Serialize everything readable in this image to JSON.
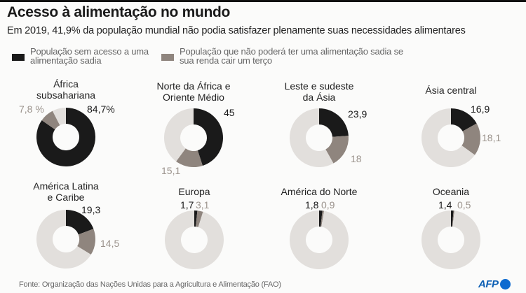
{
  "title": "Acesso à alimentação no mundo",
  "subtitle": "Em 2019, 41,9% da população mundial não podia satisfazer plenamente suas necessidades alimentares",
  "legend": [
    {
      "label": "População sem acesso a uma\nalimentação sadia",
      "color": "#1a1a1a"
    },
    {
      "label": "População que não poderá ter uma alimentação sadia se\nsua renda cair um terço",
      "color": "#8f857e"
    }
  ],
  "colors": {
    "no_access": "#1a1a1a",
    "at_risk": "#8f857e",
    "rest": "#e2dfdc"
  },
  "chart_data": {
    "type": "pie",
    "title": "Acesso à alimentação no mundo",
    "subtitle": "Em 2019, 41,9% da população mundial não podia satisfazer plenamente suas necessidades alimentares",
    "unit": "%",
    "series_names": [
      "População sem acesso a uma alimentação sadia",
      "População que não poderá ter uma alimentação sadia se sua renda cair um terço"
    ],
    "regions": [
      {
        "name": "África\nsubsahariana",
        "no_access": 84.7,
        "at_risk": 7.8,
        "no_access_label": "84,7%",
        "at_risk_label": "7,8 %"
      },
      {
        "name": "Norte da África e\nOriente Médio",
        "no_access": 45,
        "at_risk": 15.1,
        "no_access_label": "45",
        "at_risk_label": "15,1"
      },
      {
        "name": "Leste e sudeste\nda Ásia",
        "no_access": 23.9,
        "at_risk": 18,
        "no_access_label": "23,9",
        "at_risk_label": "18"
      },
      {
        "name": "Ásia central",
        "no_access": 16.9,
        "at_risk": 18.1,
        "no_access_label": "16,9",
        "at_risk_label": "18,1"
      },
      {
        "name": "América Latina\ne Caribe",
        "no_access": 19.3,
        "at_risk": 14.5,
        "no_access_label": "19,3",
        "at_risk_label": "14,5"
      },
      {
        "name": "Europa",
        "no_access": 1.7,
        "at_risk": 3.1,
        "no_access_label": "1,7",
        "at_risk_label": "3,1"
      },
      {
        "name": "América do Norte",
        "no_access": 1.8,
        "at_risk": 0.9,
        "no_access_label": "1,8",
        "at_risk_label": "0,9"
      },
      {
        "name": "Oceania",
        "no_access": 1.4,
        "at_risk": 0.5,
        "no_access_label": "1,4",
        "at_risk_label": "0,5"
      }
    ]
  },
  "source": "Fonte: Organização das Nações Unidas para a Agricultura e Alimentação (FAO)",
  "logo": "AFP"
}
